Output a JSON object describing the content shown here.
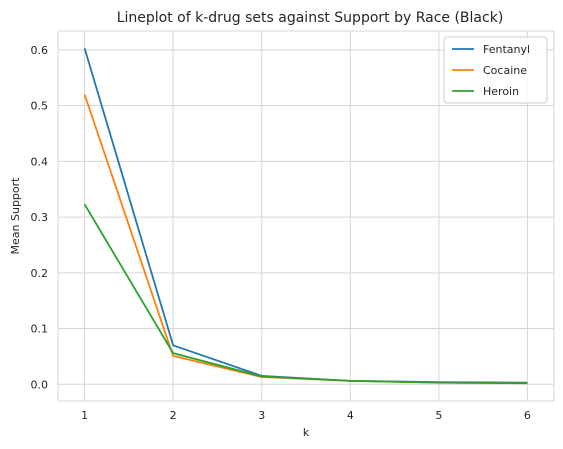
{
  "chart_data": {
    "type": "line",
    "title": "Lineplot of k-drug sets against Support by Race (Black)",
    "xlabel": "k",
    "ylabel": "Mean Support",
    "x": [
      1,
      2,
      3,
      4,
      5,
      6
    ],
    "xlim": [
      0.7,
      6.3
    ],
    "ylim": [
      -0.03,
      0.634
    ],
    "xticks": [
      "1",
      "2",
      "3",
      "4",
      "5",
      "6"
    ],
    "yticks": [
      "0.0",
      "0.1",
      "0.2",
      "0.3",
      "0.4",
      "0.5",
      "0.6"
    ],
    "grid": true,
    "legend_position": "top-right",
    "series": [
      {
        "name": "Fentanyl",
        "color": "#1f77b4",
        "values": [
          0.603,
          0.07,
          0.015,
          0.006,
          0.004,
          0.003
        ]
      },
      {
        "name": "Cocaine",
        "color": "#ff7f0e",
        "values": [
          0.52,
          0.051,
          0.013,
          0.006,
          0.003,
          0.002
        ]
      },
      {
        "name": "Heroin",
        "color": "#2ca02c",
        "values": [
          0.323,
          0.056,
          0.014,
          0.006,
          0.003,
          0.002
        ]
      }
    ]
  }
}
